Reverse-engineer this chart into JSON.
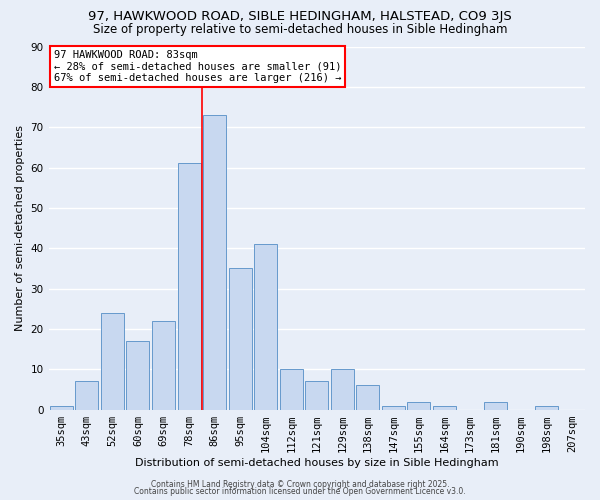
{
  "title": "97, HAWKWOOD ROAD, SIBLE HEDINGHAM, HALSTEAD, CO9 3JS",
  "subtitle": "Size of property relative to semi-detached houses in Sible Hedingham",
  "xlabel": "Distribution of semi-detached houses by size in Sible Hedingham",
  "ylabel": "Number of semi-detached properties",
  "bar_labels": [
    "35sqm",
    "43sqm",
    "52sqm",
    "60sqm",
    "69sqm",
    "78sqm",
    "86sqm",
    "95sqm",
    "104sqm",
    "112sqm",
    "121sqm",
    "129sqm",
    "138sqm",
    "147sqm",
    "155sqm",
    "164sqm",
    "173sqm",
    "181sqm",
    "190sqm",
    "198sqm",
    "207sqm"
  ],
  "bar_values": [
    1,
    7,
    24,
    17,
    22,
    61,
    73,
    35,
    41,
    10,
    7,
    10,
    6,
    1,
    2,
    1,
    0,
    2,
    0,
    1,
    0
  ],
  "bar_color": "#c8d8f0",
  "bar_edge_color": "#6699cc",
  "red_line_index": 6,
  "ylim": [
    0,
    90
  ],
  "yticks": [
    0,
    10,
    20,
    30,
    40,
    50,
    60,
    70,
    80,
    90
  ],
  "annotation_title": "97 HAWKWOOD ROAD: 83sqm",
  "annotation_line1": "← 28% of semi-detached houses are smaller (91)",
  "annotation_line2": "67% of semi-detached houses are larger (216) →",
  "footer1": "Contains HM Land Registry data © Crown copyright and database right 2025.",
  "footer2": "Contains public sector information licensed under the Open Government Licence v3.0.",
  "background_color": "#e8eef8",
  "grid_color": "#ffffff",
  "title_fontsize": 9.5,
  "subtitle_fontsize": 8.5,
  "xlabel_fontsize": 8.0,
  "ylabel_fontsize": 8.0,
  "tick_fontsize": 7.5,
  "annotation_fontsize": 7.5,
  "footer_fontsize": 5.5
}
